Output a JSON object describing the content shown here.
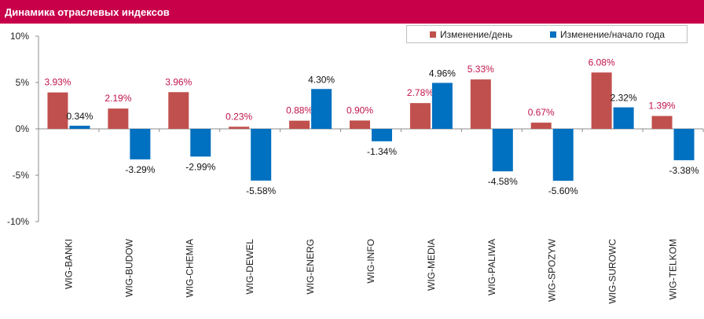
{
  "header": {
    "title": "Динамика отраслевых индексов"
  },
  "colors": {
    "header_bg": "#c8004a",
    "series_day": "#c0504d",
    "series_year": "#0070c0",
    "day_label": "#c0144a",
    "year_label": "#111111"
  },
  "chart_data": {
    "type": "bar",
    "title": "Динамика отраслевых индексов",
    "categories": [
      "WIG-BANKI",
      "WIG-BUDOW",
      "WIG-CHEMIA",
      "WIG-DEWEL",
      "WIG-ENERG",
      "WIG-INFO",
      "WIG-MEDIA",
      "WIG-PALIWA",
      "WIG-SPOZYW",
      "WIG-SUROWC",
      "WIG-TELKOM"
    ],
    "series": [
      {
        "name": "Изменение/день",
        "values": [
          3.93,
          2.19,
          3.96,
          0.23,
          0.88,
          0.9,
          2.78,
          5.33,
          0.67,
          6.08,
          1.39
        ],
        "labels": [
          "3.93%",
          "2.19%",
          "3.96%",
          "0.23%",
          "0.88%",
          "0.90%",
          "2.78%",
          "5.33%",
          "0.67%",
          "6.08%",
          "1.39%"
        ]
      },
      {
        "name": "Изменение/начало года",
        "values": [
          0.34,
          -3.29,
          -2.99,
          -5.58,
          4.3,
          -1.34,
          4.96,
          -4.58,
          -5.6,
          2.32,
          -3.38
        ],
        "labels": [
          "0.34%",
          "-3.29%",
          "-2.99%",
          "-5.58%",
          "4.30%",
          "-1.34%",
          "4.96%",
          "-4.58%",
          "-5.60%",
          "2.32%",
          "-3.38%"
        ]
      }
    ],
    "ylim": [
      -10,
      10
    ],
    "yticks": [
      10,
      5,
      0,
      -5,
      -10
    ],
    "ytick_labels": [
      "10%",
      "5%",
      "0%",
      "-5%",
      "-10%"
    ],
    "grid": false,
    "legend": "top-right"
  }
}
